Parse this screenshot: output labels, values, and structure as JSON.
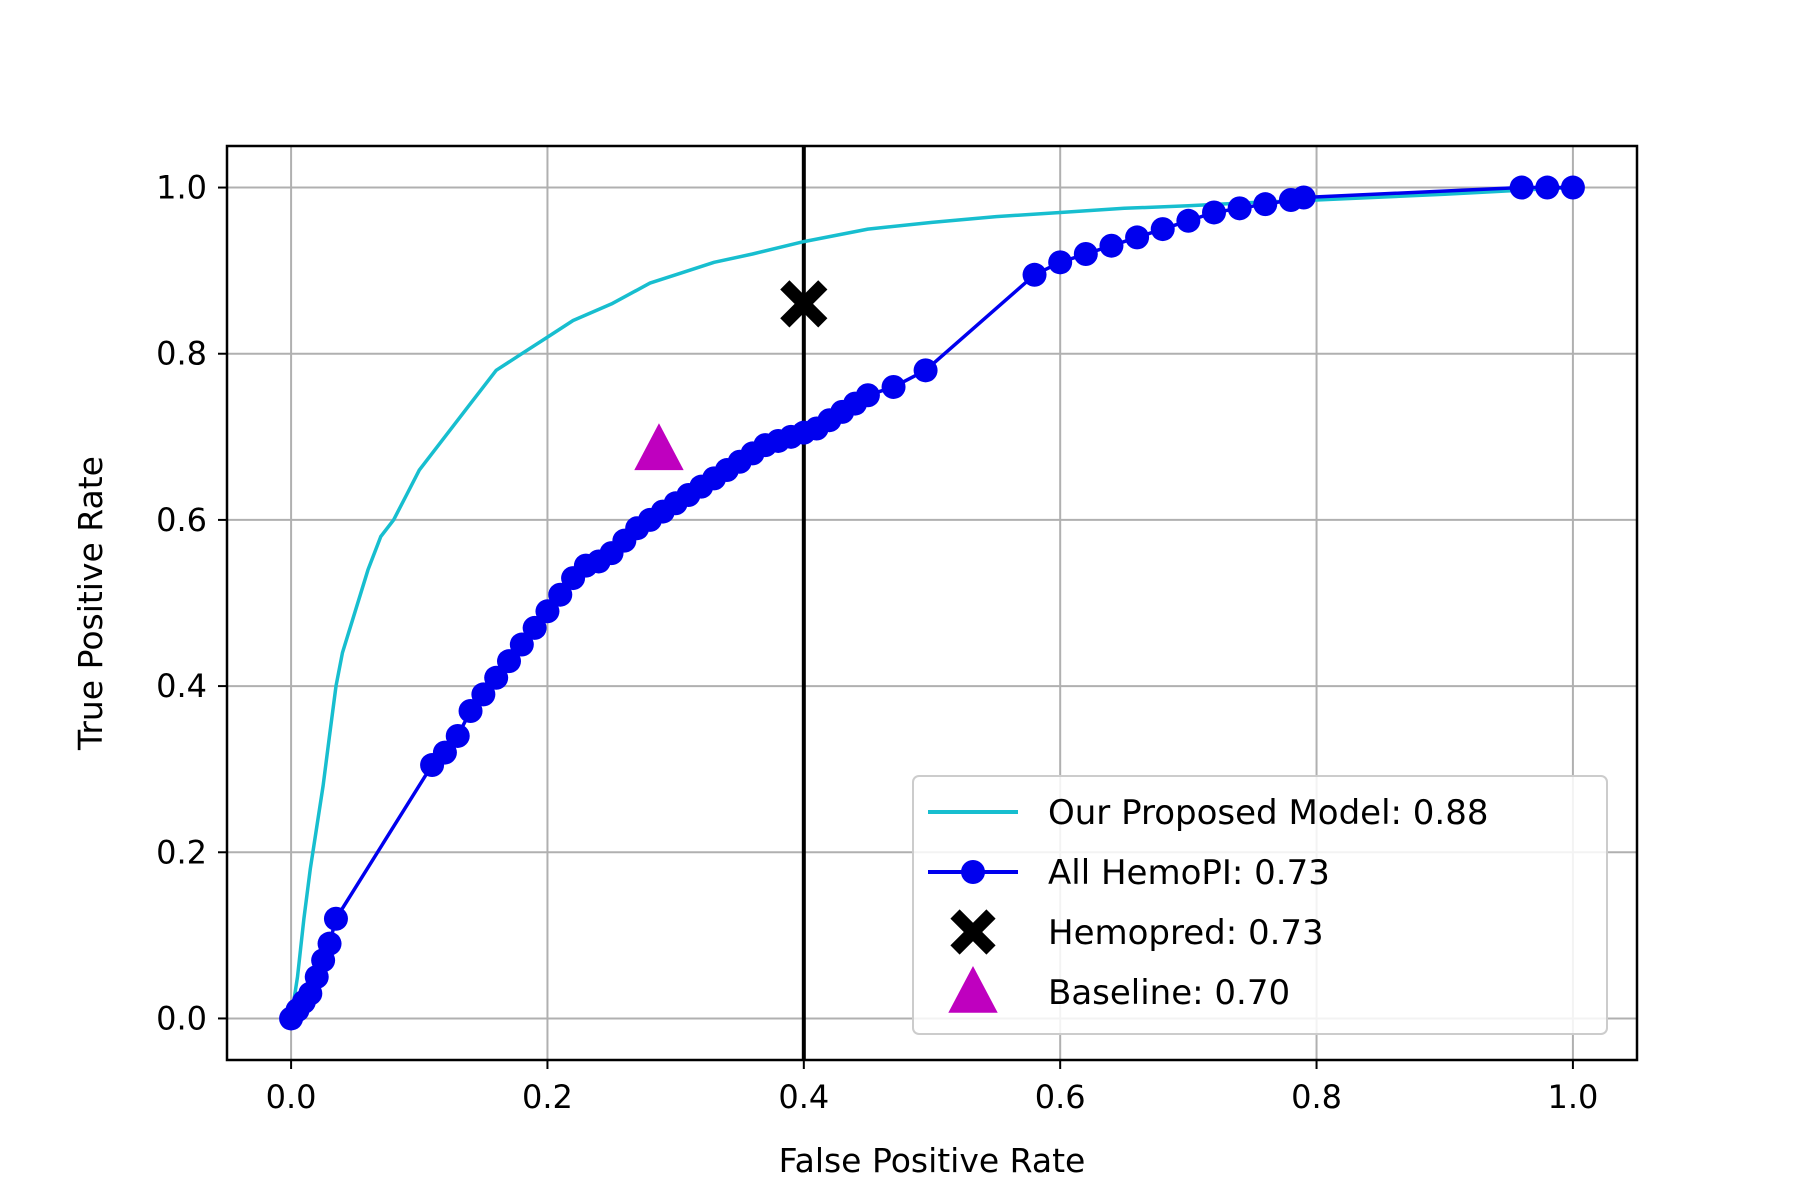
{
  "chart_data": {
    "type": "line",
    "title": "",
    "xlabel": "False Positive Rate",
    "ylabel": "True Positive Rate",
    "xlim": [
      -0.05,
      1.05
    ],
    "ylim": [
      -0.05,
      1.05
    ],
    "x_ticks": [
      "0.0",
      "0.2",
      "0.4",
      "0.6",
      "0.8",
      "1.0"
    ],
    "y_ticks": [
      "0.0",
      "0.2",
      "0.4",
      "0.6",
      "0.8",
      "1.0"
    ],
    "x_tick_values": [
      0,
      0.2,
      0.4,
      0.6,
      0.8,
      1.0
    ],
    "y_tick_values": [
      0,
      0.2,
      0.4,
      0.6,
      0.8,
      1.0
    ],
    "grid": true,
    "legend_position": "lower-right",
    "vline": {
      "x": 0.4,
      "color": "#000000"
    },
    "series": [
      {
        "name": "Our Proposed Model: 0.88",
        "kind": "line",
        "color": "#17becf",
        "x": [
          0,
          0.005,
          0.01,
          0.015,
          0.02,
          0.025,
          0.03,
          0.035,
          0.04,
          0.05,
          0.06,
          0.07,
          0.08,
          0.09,
          0.1,
          0.12,
          0.14,
          0.16,
          0.18,
          0.2,
          0.22,
          0.25,
          0.28,
          0.3,
          0.33,
          0.36,
          0.4,
          0.45,
          0.5,
          0.55,
          0.6,
          0.65,
          0.7,
          0.75,
          0.8,
          0.9,
          1.0
        ],
        "y": [
          0,
          0.05,
          0.12,
          0.18,
          0.23,
          0.28,
          0.34,
          0.4,
          0.44,
          0.49,
          0.54,
          0.58,
          0.6,
          0.63,
          0.66,
          0.7,
          0.74,
          0.78,
          0.8,
          0.82,
          0.84,
          0.86,
          0.885,
          0.895,
          0.91,
          0.92,
          0.935,
          0.95,
          0.958,
          0.965,
          0.97,
          0.975,
          0.978,
          0.982,
          0.985,
          0.992,
          1.0
        ]
      },
      {
        "name": "All HemoPI: 0.73",
        "kind": "line-marker",
        "color": "#0000ee",
        "x": [
          0,
          0.005,
          0.01,
          0.015,
          0.02,
          0.025,
          0.03,
          0.035,
          0.11,
          0.12,
          0.13,
          0.14,
          0.15,
          0.16,
          0.17,
          0.18,
          0.19,
          0.2,
          0.21,
          0.22,
          0.23,
          0.24,
          0.25,
          0.26,
          0.27,
          0.28,
          0.29,
          0.3,
          0.31,
          0.32,
          0.33,
          0.34,
          0.35,
          0.36,
          0.37,
          0.38,
          0.39,
          0.4,
          0.41,
          0.42,
          0.43,
          0.44,
          0.45,
          0.47,
          0.495,
          0.58,
          0.6,
          0.62,
          0.64,
          0.66,
          0.68,
          0.7,
          0.72,
          0.74,
          0.76,
          0.78,
          0.79,
          0.96,
          0.98,
          1.0
        ],
        "y": [
          0,
          0.01,
          0.02,
          0.03,
          0.05,
          0.07,
          0.09,
          0.12,
          0.305,
          0.32,
          0.34,
          0.37,
          0.39,
          0.41,
          0.43,
          0.45,
          0.47,
          0.49,
          0.51,
          0.53,
          0.545,
          0.55,
          0.56,
          0.575,
          0.59,
          0.6,
          0.61,
          0.62,
          0.63,
          0.64,
          0.65,
          0.66,
          0.67,
          0.68,
          0.69,
          0.695,
          0.7,
          0.705,
          0.71,
          0.72,
          0.73,
          0.74,
          0.75,
          0.76,
          0.78,
          0.895,
          0.91,
          0.92,
          0.93,
          0.94,
          0.95,
          0.96,
          0.97,
          0.975,
          0.98,
          0.985,
          0.988,
          1.0,
          1.0,
          1.0
        ]
      },
      {
        "name": "Hemopred:  0.73",
        "kind": "marker-x",
        "color": "#000000",
        "x": [
          0.4
        ],
        "y": [
          0.86
        ]
      },
      {
        "name": "Baseline: 0.70",
        "kind": "marker-triangle",
        "color": "#bf00bf",
        "x": [
          0.287
        ],
        "y": [
          0.685
        ]
      }
    ]
  }
}
